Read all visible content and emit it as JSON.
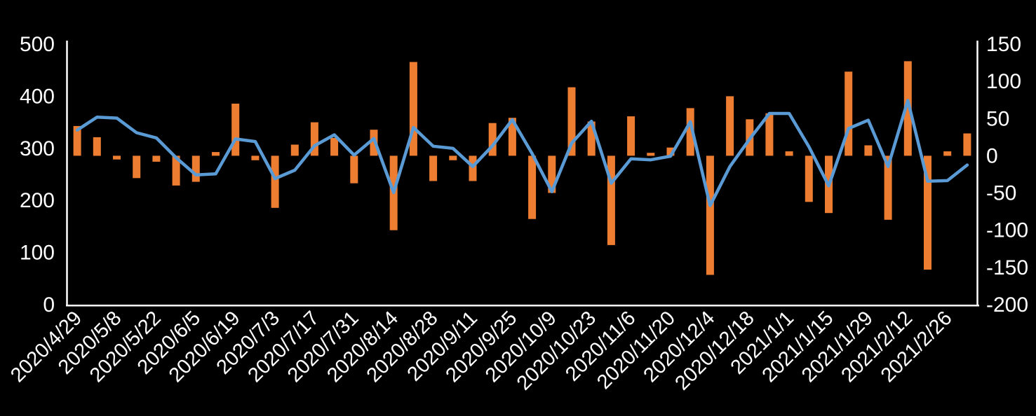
{
  "chart": {
    "background_color": "#000000",
    "text_color": "#FFFFFF",
    "axis_line_color": "#FFFFFF",
    "title": "",
    "legend": "none"
  },
  "chart_data": {
    "type": "combo-bar-line",
    "title": "",
    "n_points": 46,
    "x_tick_labels": [
      "2020/4/29",
      "2020/5/8",
      "2020/5/22",
      "2020/6/5",
      "2020/6/19",
      "2020/7/3",
      "2020/7/17",
      "2020/7/31",
      "2020/8/14",
      "2020/8/28",
      "2020/9/11",
      "2020/9/25",
      "2020/10/9",
      "2020/10/23",
      "2020/11/6",
      "2020/11/20",
      "2020/12/4",
      "2020/12/18",
      "2021/1/1",
      "2021/1/15",
      "2021/1/29",
      "2021/2/12",
      "2021/2/26"
    ],
    "x_label_every_n_points": 2,
    "x_label_rotation_deg": -45,
    "series": [
      {
        "name": "bar-series",
        "type": "bar",
        "y_axis": "right",
        "color": "#ED7D31",
        "values": [
          40,
          25,
          -5,
          -30,
          -8,
          -40,
          -35,
          5,
          70,
          -6,
          -70,
          15,
          45,
          24,
          -37,
          35,
          -100,
          126,
          -34,
          -6,
          -34,
          44,
          51,
          -85,
          -50,
          92,
          46,
          -120,
          53,
          4,
          11,
          64,
          -160,
          80,
          49,
          57,
          6,
          -62,
          -77,
          113,
          14,
          -86,
          127,
          -153,
          6,
          30
        ]
      },
      {
        "name": "line-series",
        "type": "line",
        "y_axis": "left",
        "color": "#5B9BD5",
        "values": [
          335,
          360,
          358,
          330,
          320,
          282,
          249,
          251,
          318,
          313,
          242,
          258,
          305,
          326,
          287,
          319,
          215,
          340,
          304,
          300,
          265,
          305,
          355,
          290,
          217,
          310,
          352,
          233,
          280,
          278,
          285,
          351,
          190,
          265,
          318,
          367,
          367,
          303,
          228,
          338,
          354,
          265,
          392,
          237,
          238,
          268
        ]
      }
    ],
    "y_axis_left": {
      "min": 0,
      "max": 500,
      "tick_interval": 100,
      "ticks": [
        0,
        100,
        200,
        300,
        400,
        500
      ]
    },
    "y_axis_right": {
      "min": -200,
      "max": 150,
      "tick_interval": 50,
      "ticks": [
        -200,
        -150,
        -100,
        -50,
        0,
        50,
        100,
        150
      ]
    },
    "legend_position": "none",
    "gridlines": false
  }
}
